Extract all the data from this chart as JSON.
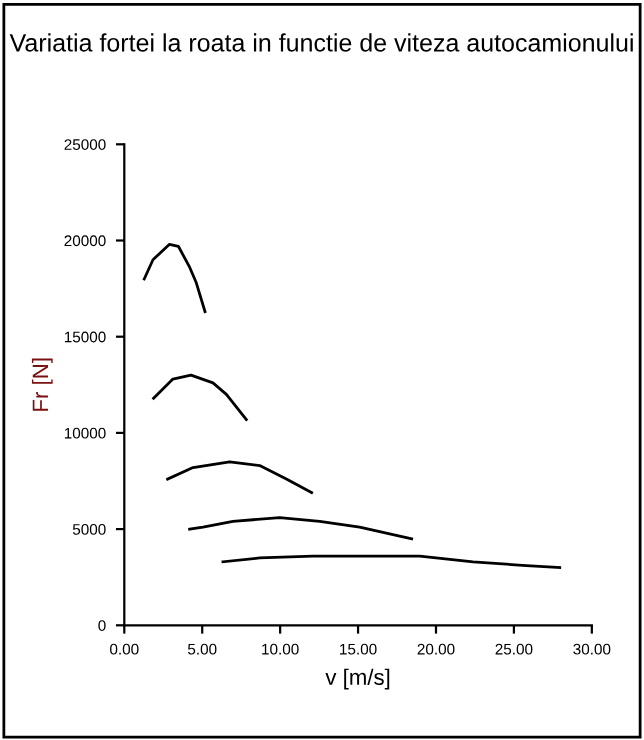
{
  "chart_data": {
    "type": "line",
    "title": "Variatia fortei la roata in functie de viteza autocamionului",
    "xlabel": "v [m/s]",
    "ylabel": "Fr [N]",
    "series": [
      {
        "color": "#000000",
        "x": [
          1.28,
          1.84,
          2.9,
          3.47,
          4.2,
          4.62,
          5.18
        ],
        "values": [
          18000,
          19000,
          19800,
          19700,
          18600,
          17800,
          16300
        ]
      },
      {
        "color": "#000000",
        "x": [
          1.88,
          3.12,
          4.28,
          5.69,
          6.55,
          7.83
        ],
        "values": [
          11800,
          12800,
          13000,
          12600,
          12000,
          10700
        ]
      },
      {
        "color": "#000000",
        "x": [
          2.78,
          4.41,
          6.76,
          8.69,
          10.4,
          12.02
        ],
        "values": [
          7600,
          8200,
          8500,
          8300,
          7600,
          6900
        ]
      },
      {
        "color": "#000000",
        "x": [
          4.19,
          5.05,
          6.97,
          9.97,
          12.54,
          15.1,
          18.44
        ],
        "values": [
          5000,
          5100,
          5400,
          5600,
          5400,
          5100,
          4500
        ]
      },
      {
        "color": "#000000",
        "x": [
          6.33,
          8.69,
          12.1,
          18.96,
          22.38,
          25.8,
          27.94
        ],
        "values": [
          3300,
          3500,
          3600,
          3600,
          3300,
          3100,
          3000
        ]
      }
    ],
    "xlim": [
      0,
      30
    ],
    "ylim": [
      0,
      25000
    ],
    "xticks": [
      {
        "value": 0,
        "label": "0.00"
      },
      {
        "value": 5,
        "label": "5.00"
      },
      {
        "value": 10,
        "label": "10.00"
      },
      {
        "value": 15,
        "label": "15.00"
      },
      {
        "value": 20,
        "label": "20.00"
      },
      {
        "value": 25,
        "label": "25.00"
      },
      {
        "value": 30,
        "label": "30.00"
      }
    ],
    "yticks": [
      0,
      5000,
      10000,
      15000,
      20000,
      25000
    ],
    "grid": false,
    "legend": false,
    "marker": "none",
    "line_style": "solid"
  }
}
